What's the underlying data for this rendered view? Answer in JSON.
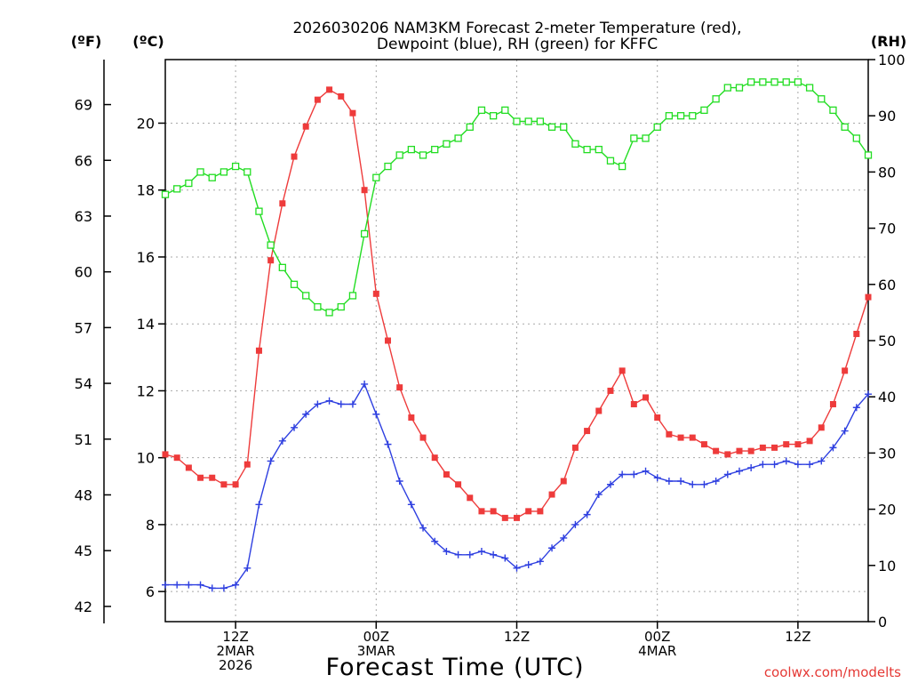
{
  "chart_data": {
    "type": "line",
    "title_line1": "2026030206 NAM3KM Forecast 2-meter Temperature (red),",
    "title_line2": "Dewpoint (blue), RH (green) for KFFC",
    "xlabel": "Forecast Time (UTC)",
    "credit": "coolwx.com/modelts",
    "units": {
      "fahrenheit": "(ºF)",
      "celsius": "(ºC)",
      "rh": "(RH)"
    },
    "x_range_hours": [
      0,
      60
    ],
    "x_ticks": [
      {
        "hour": 6,
        "lines": [
          "12Z",
          "2MAR",
          "2026"
        ]
      },
      {
        "hour": 18,
        "lines": [
          "00Z",
          "3MAR"
        ]
      },
      {
        "hour": 30,
        "lines": [
          "12Z"
        ]
      },
      {
        "hour": 42,
        "lines": [
          "00Z",
          "4MAR"
        ]
      },
      {
        "hour": 54,
        "lines": [
          "12Z"
        ]
      }
    ],
    "y_celsius": {
      "range": [
        5.1,
        21.9
      ],
      "ticks": [
        "6",
        "8",
        "10",
        "12",
        "14",
        "16",
        "18",
        "20"
      ]
    },
    "y_fahrenheit": {
      "ticks": [
        "42",
        "45",
        "48",
        "51",
        "54",
        "57",
        "60",
        "63",
        "66",
        "69"
      ]
    },
    "y_rh": {
      "range": [
        0,
        100
      ],
      "ticks": [
        "0",
        "10",
        "20",
        "30",
        "40",
        "50",
        "60",
        "70",
        "80",
        "90",
        "100"
      ]
    },
    "colors": {
      "temperature": "#ee3b3b",
      "dewpoint": "#2e3fe0",
      "rh": "#22dd22",
      "grid": "#a8a8a8"
    },
    "series": [
      {
        "name": "Temperature (°C)",
        "marker": "filled-square",
        "axis": "celsius",
        "values": [
          10.1,
          10.0,
          9.7,
          9.4,
          9.4,
          9.2,
          9.2,
          9.8,
          13.2,
          15.9,
          17.6,
          19.0,
          19.9,
          20.7,
          21.0,
          20.8,
          20.3,
          18.0,
          14.9,
          13.5,
          12.1,
          11.2,
          10.6,
          10.0,
          9.5,
          9.2,
          8.8,
          8.4,
          8.4,
          8.2,
          8.2,
          8.4,
          8.4,
          8.9,
          9.3,
          10.3,
          10.8,
          11.4,
          12.0,
          12.6,
          11.6,
          11.8,
          11.2,
          10.7,
          10.6,
          10.6,
          10.4,
          10.2,
          10.1,
          10.2,
          10.2,
          10.3,
          10.3,
          10.4,
          10.4,
          10.5,
          10.9,
          11.6,
          12.6,
          13.7,
          14.8
        ]
      },
      {
        "name": "Dewpoint (°C)",
        "marker": "plus",
        "axis": "celsius",
        "values": [
          6.2,
          6.2,
          6.2,
          6.2,
          6.1,
          6.1,
          6.2,
          6.7,
          8.6,
          9.9,
          10.5,
          10.9,
          11.3,
          11.6,
          11.7,
          11.6,
          11.6,
          12.2,
          11.3,
          10.4,
          9.3,
          8.6,
          7.9,
          7.5,
          7.2,
          7.1,
          7.1,
          7.2,
          7.1,
          7.0,
          6.7,
          6.8,
          6.9,
          7.3,
          7.6,
          8.0,
          8.3,
          8.9,
          9.2,
          9.5,
          9.5,
          9.6,
          9.4,
          9.3,
          9.3,
          9.2,
          9.2,
          9.3,
          9.5,
          9.6,
          9.7,
          9.8,
          9.8,
          9.9,
          9.8,
          9.8,
          9.9,
          10.3,
          10.8,
          11.5,
          11.9
        ]
      },
      {
        "name": "RH (%)",
        "marker": "open-square",
        "axis": "rh",
        "values": [
          76,
          77,
          78,
          80,
          79,
          80,
          81,
          80,
          73,
          67,
          63,
          60,
          58,
          56,
          55,
          56,
          58,
          69,
          79,
          81,
          83,
          84,
          83,
          84,
          85,
          86,
          88,
          91,
          90,
          91,
          89,
          89,
          89,
          88,
          88,
          85,
          84,
          84,
          82,
          81,
          86,
          86,
          88,
          90,
          90,
          90,
          91,
          93,
          95,
          95,
          96,
          96,
          96,
          96,
          96,
          95,
          93,
          91,
          88,
          86,
          83
        ]
      }
    ]
  }
}
